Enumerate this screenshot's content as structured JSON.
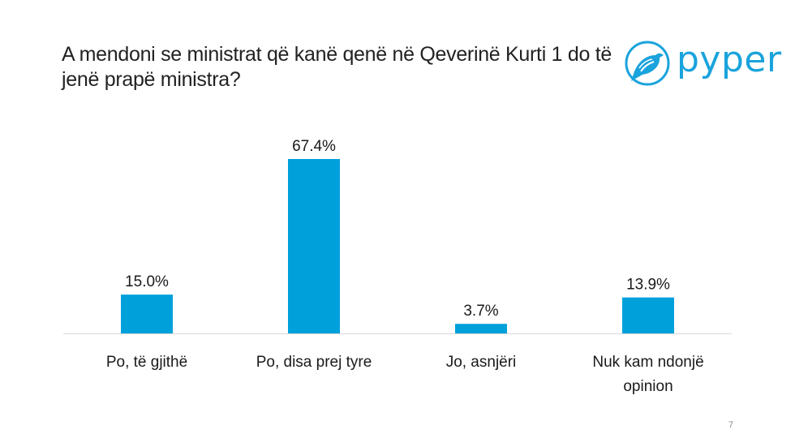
{
  "slide": {
    "title": "A mendoni se ministrat që kanë qenë në Qeverinë Kurti 1 do të jenë prapë ministra?",
    "page_number": "7"
  },
  "logo": {
    "text": "pyper",
    "icon": "bird-icon",
    "color": "#1aa3dc"
  },
  "colors": {
    "bar": "#00a0db",
    "axis": "#d9d9d9"
  },
  "chart_data": {
    "type": "bar",
    "title": "A mendoni se ministrat që kanë qenë në Qeverinë Kurti 1 do të jenë prapë ministra?",
    "categories": [
      [
        "Po, të gjithë"
      ],
      [
        "Po, disa prej tyre"
      ],
      [
        "Jo, asnjëri"
      ],
      [
        "Nuk kam ndonjë",
        "opinion"
      ]
    ],
    "values": [
      15.0,
      67.4,
      3.7,
      13.9
    ],
    "data_labels": [
      "15.0%",
      "67.4%",
      "3.7%",
      "13.9%"
    ],
    "xlabel": "",
    "ylabel": "",
    "ylim": [
      0,
      70
    ],
    "grid": false,
    "legend": "none"
  }
}
